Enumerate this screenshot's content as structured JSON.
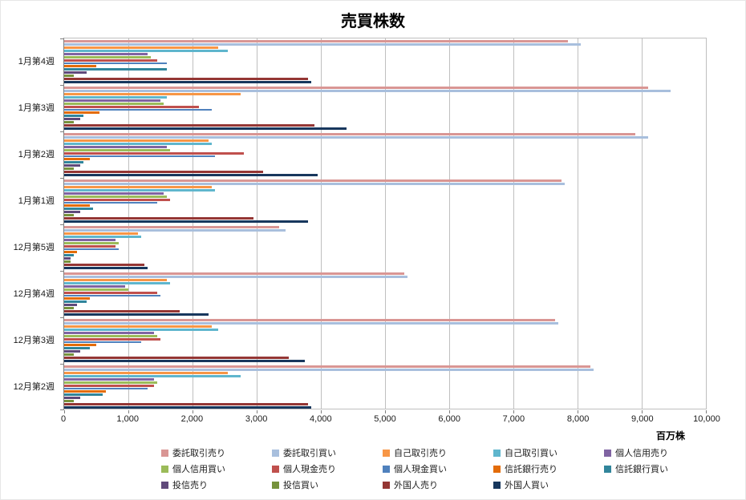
{
  "chart_data": {
    "type": "bar",
    "orientation": "horizontal",
    "title": "売買株数",
    "xlabel": "百万株",
    "xlim": [
      0,
      10000
    ],
    "x_ticks": [
      "0",
      "1,000",
      "2,000",
      "3,000",
      "4,000",
      "5,000",
      "6,000",
      "7,000",
      "8,000",
      "9,000",
      "10,000"
    ],
    "grid": "vertical",
    "legend_position": "bottom",
    "categories": [
      "1月第4週",
      "1月第3週",
      "1月第2週",
      "1月第1週",
      "12月第5週",
      "12月第4週",
      "12月第3週",
      "12月第2週"
    ],
    "series": [
      {
        "name": "委託取引売り",
        "color": "#d99694",
        "values": [
          7850,
          9100,
          8900,
          7750,
          3350,
          5300,
          7650,
          8200
        ]
      },
      {
        "name": "委託取引買い",
        "color": "#a8bfdd",
        "values": [
          8050,
          9450,
          9100,
          7800,
          3450,
          5350,
          7700,
          8250
        ]
      },
      {
        "name": "自己取引売り",
        "color": "#f79646",
        "values": [
          2400,
          2750,
          2250,
          2300,
          1150,
          1600,
          2300,
          2550
        ]
      },
      {
        "name": "自己取引買い",
        "color": "#5fb6cd",
        "values": [
          2550,
          1600,
          2300,
          2350,
          1200,
          1650,
          2400,
          2750
        ]
      },
      {
        "name": "個人信用売り",
        "color": "#8064a2",
        "values": [
          1300,
          1500,
          1600,
          1550,
          800,
          950,
          1400,
          1400
        ]
      },
      {
        "name": "個人信用買い",
        "color": "#9bbb59",
        "values": [
          1350,
          1550,
          1650,
          1600,
          850,
          1000,
          1450,
          1450
        ]
      },
      {
        "name": "個人現金売り",
        "color": "#c0504d",
        "values": [
          1450,
          2100,
          2800,
          1650,
          800,
          1450,
          1500,
          1400
        ]
      },
      {
        "name": "個人現金買い",
        "color": "#4f81bd",
        "values": [
          1600,
          2300,
          2350,
          1450,
          850,
          1500,
          1200,
          1300
        ]
      },
      {
        "name": "信託銀行売り",
        "color": "#e36c09",
        "values": [
          500,
          550,
          400,
          400,
          200,
          400,
          500,
          650
        ]
      },
      {
        "name": "信託銀行買い",
        "color": "#31859b",
        "values": [
          1600,
          300,
          300,
          450,
          150,
          350,
          400,
          600
        ]
      },
      {
        "name": "投信売り",
        "color": "#604a7b",
        "values": [
          350,
          250,
          250,
          250,
          100,
          200,
          250,
          250
        ]
      },
      {
        "name": "投信買い",
        "color": "#76923c",
        "values": [
          150,
          150,
          150,
          150,
          100,
          150,
          150,
          150
        ]
      },
      {
        "name": "外国人売り",
        "color": "#943634",
        "values": [
          3800,
          3900,
          3100,
          2950,
          1250,
          1800,
          3500,
          3800
        ]
      },
      {
        "name": "外国人買い",
        "color": "#17375d",
        "values": [
          3850,
          4400,
          3950,
          3800,
          1300,
          2250,
          3750,
          3850
        ]
      }
    ]
  }
}
